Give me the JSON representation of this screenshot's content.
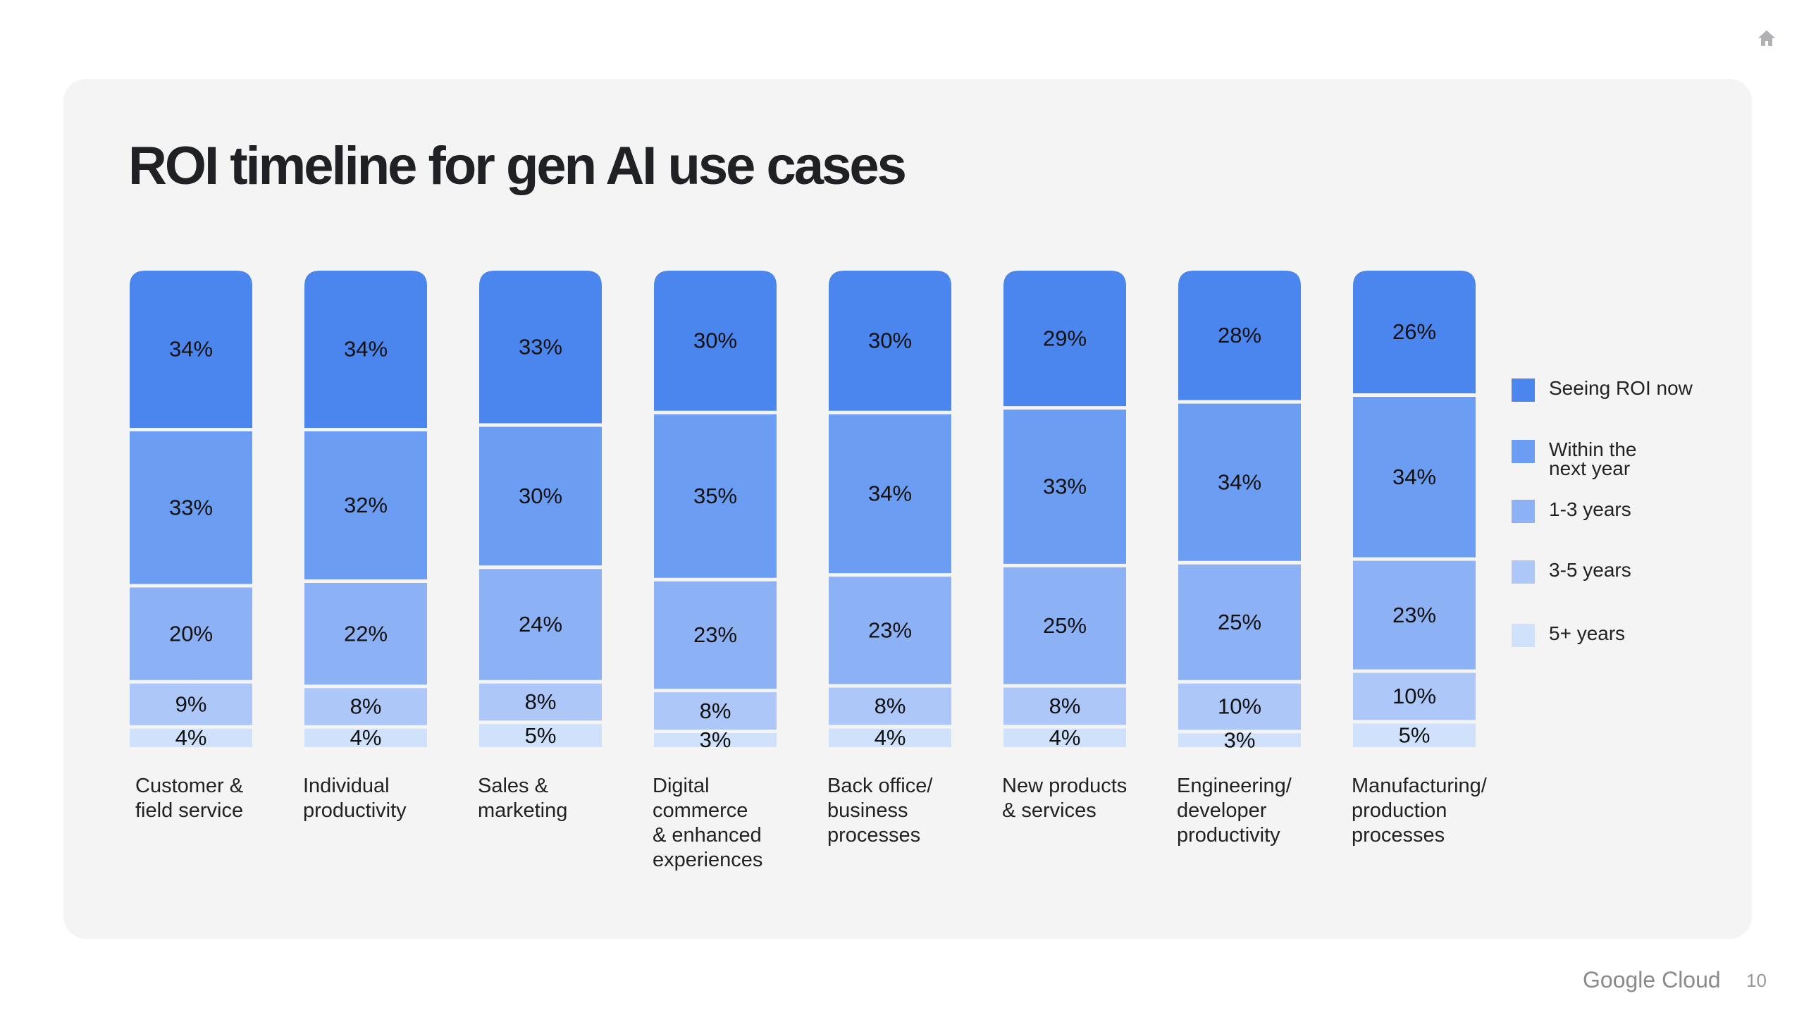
{
  "title": "ROI timeline for gen AI use cases",
  "footer": {
    "brand": "Google Cloud",
    "page_number": "10",
    "home_icon": "home-icon"
  },
  "colors": [
    "#4a86ee",
    "#6b9ef2",
    "#8cb2f5",
    "#adc8f8",
    "#d0e1fb"
  ],
  "chart_data": {
    "type": "bar",
    "stacked": true,
    "orientation": "vertical",
    "categories": [
      "Customer &\nfield service",
      "Individual\nproductivity",
      "Sales &\nmarketing",
      "Digital\ncommerce\n& enhanced\nexperiences",
      "Back office/\nbusiness\nprocesses",
      "New products\n& services",
      "Engineering/\ndeveloper\nproductivity",
      "Manufacturing/\nproduction\nprocesses"
    ],
    "series": [
      {
        "name": "Seeing ROI now",
        "values": [
          34,
          34,
          33,
          30,
          30,
          29,
          28,
          26
        ]
      },
      {
        "name": "Within the\nnext year",
        "values": [
          33,
          32,
          30,
          35,
          34,
          33,
          34,
          34
        ]
      },
      {
        "name": "1-3 years",
        "values": [
          20,
          22,
          24,
          23,
          23,
          25,
          25,
          23
        ]
      },
      {
        "name": "3-5 years",
        "values": [
          9,
          8,
          8,
          8,
          8,
          8,
          10,
          10
        ]
      },
      {
        "name": "5+ years",
        "values": [
          4,
          4,
          5,
          3,
          4,
          4,
          3,
          5
        ]
      }
    ],
    "unit": "%",
    "legend": "right",
    "grid": false,
    "axes_visible": false
  }
}
